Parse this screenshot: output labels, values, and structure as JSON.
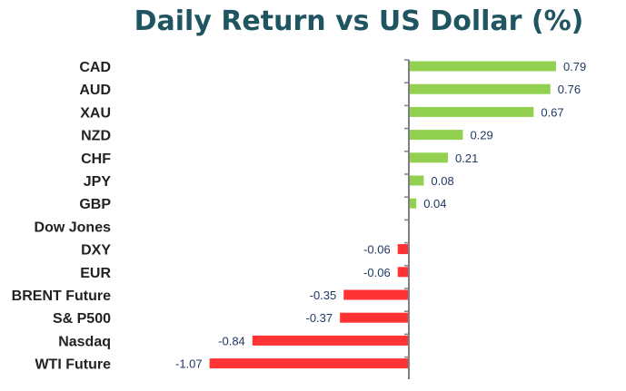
{
  "chart_data": {
    "type": "bar",
    "orientation": "horizontal",
    "title": "Daily Return vs US Dollar (%)",
    "categories": [
      "CAD",
      "AUD",
      "XAU",
      "NZD",
      "CHF",
      "JPY",
      "GBP",
      "Dow Jones",
      "DXY",
      "EUR",
      "BRENT Future",
      "S& P500",
      "Nasdaq",
      "WTI Future"
    ],
    "values": [
      0.79,
      0.76,
      0.67,
      0.29,
      0.21,
      0.08,
      0.04,
      null,
      -0.06,
      -0.06,
      -0.35,
      -0.37,
      -0.84,
      -1.07
    ],
    "value_labels": [
      "0.79",
      "0.76",
      "0.67",
      "0.29",
      "0.21",
      "0.08",
      "0.04",
      "",
      "-0.06",
      "-0.06",
      "-0.35",
      "-0.37",
      "-0.84",
      "-1.07"
    ],
    "colors": {
      "positive": "#92d050",
      "negative": "#ff3333",
      "title": "#1f5560",
      "axis": "#7f7f7f",
      "value_label": "#1f3864"
    },
    "xlim": [
      -1.07,
      0.79
    ],
    "grid": false,
    "legend": "none"
  }
}
